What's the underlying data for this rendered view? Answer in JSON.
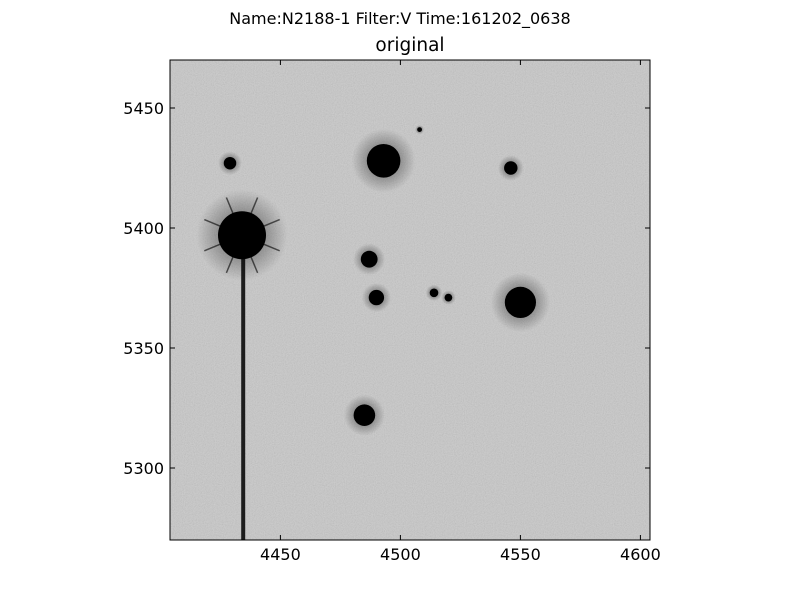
{
  "figure": {
    "suptitle": "Name:N2188-1 Filter:V Time:161202_0638",
    "title": "original"
  },
  "image_panel": {
    "type": "grayscale-fits-cutout",
    "colormap": "gray_r",
    "xlim": [
      4404,
      4604
    ],
    "ylim": [
      5270,
      5470
    ],
    "xticks": [
      "4450",
      "4500",
      "4550",
      "4600"
    ],
    "yticks": [
      "5300",
      "5350",
      "5400",
      "5450"
    ],
    "xtick_values": [
      4450,
      4500,
      4550,
      4600
    ],
    "ytick_values": [
      5300,
      5350,
      5400,
      5450
    ],
    "background_color": "#c8c8c8",
    "star_color": "#000000",
    "stars": [
      {
        "x": 4434,
        "y": 5397,
        "r": 10,
        "spikes": true
      },
      {
        "x": 4493,
        "y": 5428,
        "r": 7
      },
      {
        "x": 4550,
        "y": 5369,
        "r": 6.5
      },
      {
        "x": 4485,
        "y": 5322,
        "r": 4.5
      },
      {
        "x": 4487,
        "y": 5387,
        "r": 3.5
      },
      {
        "x": 4490,
        "y": 5371,
        "r": 3.2
      },
      {
        "x": 4546,
        "y": 5425,
        "r": 2.8
      },
      {
        "x": 4429,
        "y": 5427,
        "r": 2.6
      },
      {
        "x": 4514,
        "y": 5373,
        "r": 1.8
      },
      {
        "x": 4520,
        "y": 5371,
        "r": 1.6
      },
      {
        "x": 4508,
        "y": 5441,
        "r": 1.0
      }
    ],
    "bleed_trail": {
      "x": 4434.5,
      "y_top": 5390,
      "y_bottom": 5270
    }
  }
}
